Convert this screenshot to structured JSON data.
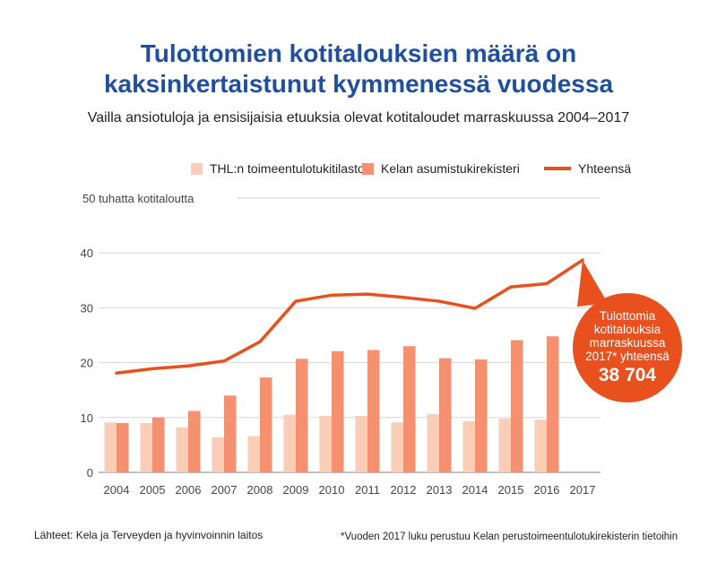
{
  "title_line1": "Tulottomien kotitalouksien määrä on",
  "title_line2": "kaksinkertaistunut kymmenessä vuodessa",
  "subtitle": "Vailla ansiotuloja ja ensisijaisia etuuksia olevat kotitaloudet marraskuussa 2004–2017",
  "legend": [
    {
      "label": "THL:n toimeentulotukitilasto",
      "color": "#f9cdb6",
      "kind": "box"
    },
    {
      "label": "Kelan asumistukirekisteri",
      "color": "#f59071",
      "kind": "box"
    },
    {
      "label": "Yhteensä",
      "color": "#e8501e",
      "kind": "line"
    }
  ],
  "callout": {
    "line1": "Tulottomia",
    "line2": "kotitalouksia",
    "line3": "marraskuussa",
    "line4": "2017* yhteensä",
    "value": "38 704"
  },
  "footer_left": "Lähteet: Kela ja Terveyden ja hyvinvoinnin laitos",
  "footer_right": "*Vuoden 2017 luku perustuu Kelan perustoimeentulotukirekisterin tietoihin",
  "chart_data": {
    "type": "bar",
    "ylabel": "50 tuhatta kotitaloutta",
    "ylim": [
      0,
      50
    ],
    "yticks": [
      0,
      10,
      20,
      30,
      40
    ],
    "grid": true,
    "legend_position": "top",
    "categories": [
      "2004",
      "2005",
      "2006",
      "2007",
      "2008",
      "2009",
      "2010",
      "2011",
      "2012",
      "2013",
      "2014",
      "2015",
      "2016",
      "2017"
    ],
    "series": [
      {
        "name": "THL:n toimeentulotukitilasto",
        "type": "bar",
        "color": "#f9cdb6",
        "values": [
          9.1,
          9.0,
          8.2,
          6.4,
          6.6,
          10.5,
          10.3,
          10.3,
          9.1,
          10.6,
          9.3,
          9.8,
          9.6,
          null
        ]
      },
      {
        "name": "Kelan asumistukirekisteri",
        "type": "bar",
        "color": "#f59071",
        "values": [
          9.0,
          10.0,
          11.2,
          14.0,
          17.3,
          20.7,
          22.1,
          22.3,
          23.0,
          20.8,
          20.6,
          24.1,
          24.8,
          null
        ]
      },
      {
        "name": "Yhteensä",
        "type": "line",
        "color": "#e8501e",
        "values": [
          18.1,
          18.9,
          19.4,
          20.3,
          23.8,
          31.2,
          32.3,
          32.5,
          31.9,
          31.2,
          29.9,
          33.8,
          34.4,
          38.7
        ]
      }
    ]
  }
}
